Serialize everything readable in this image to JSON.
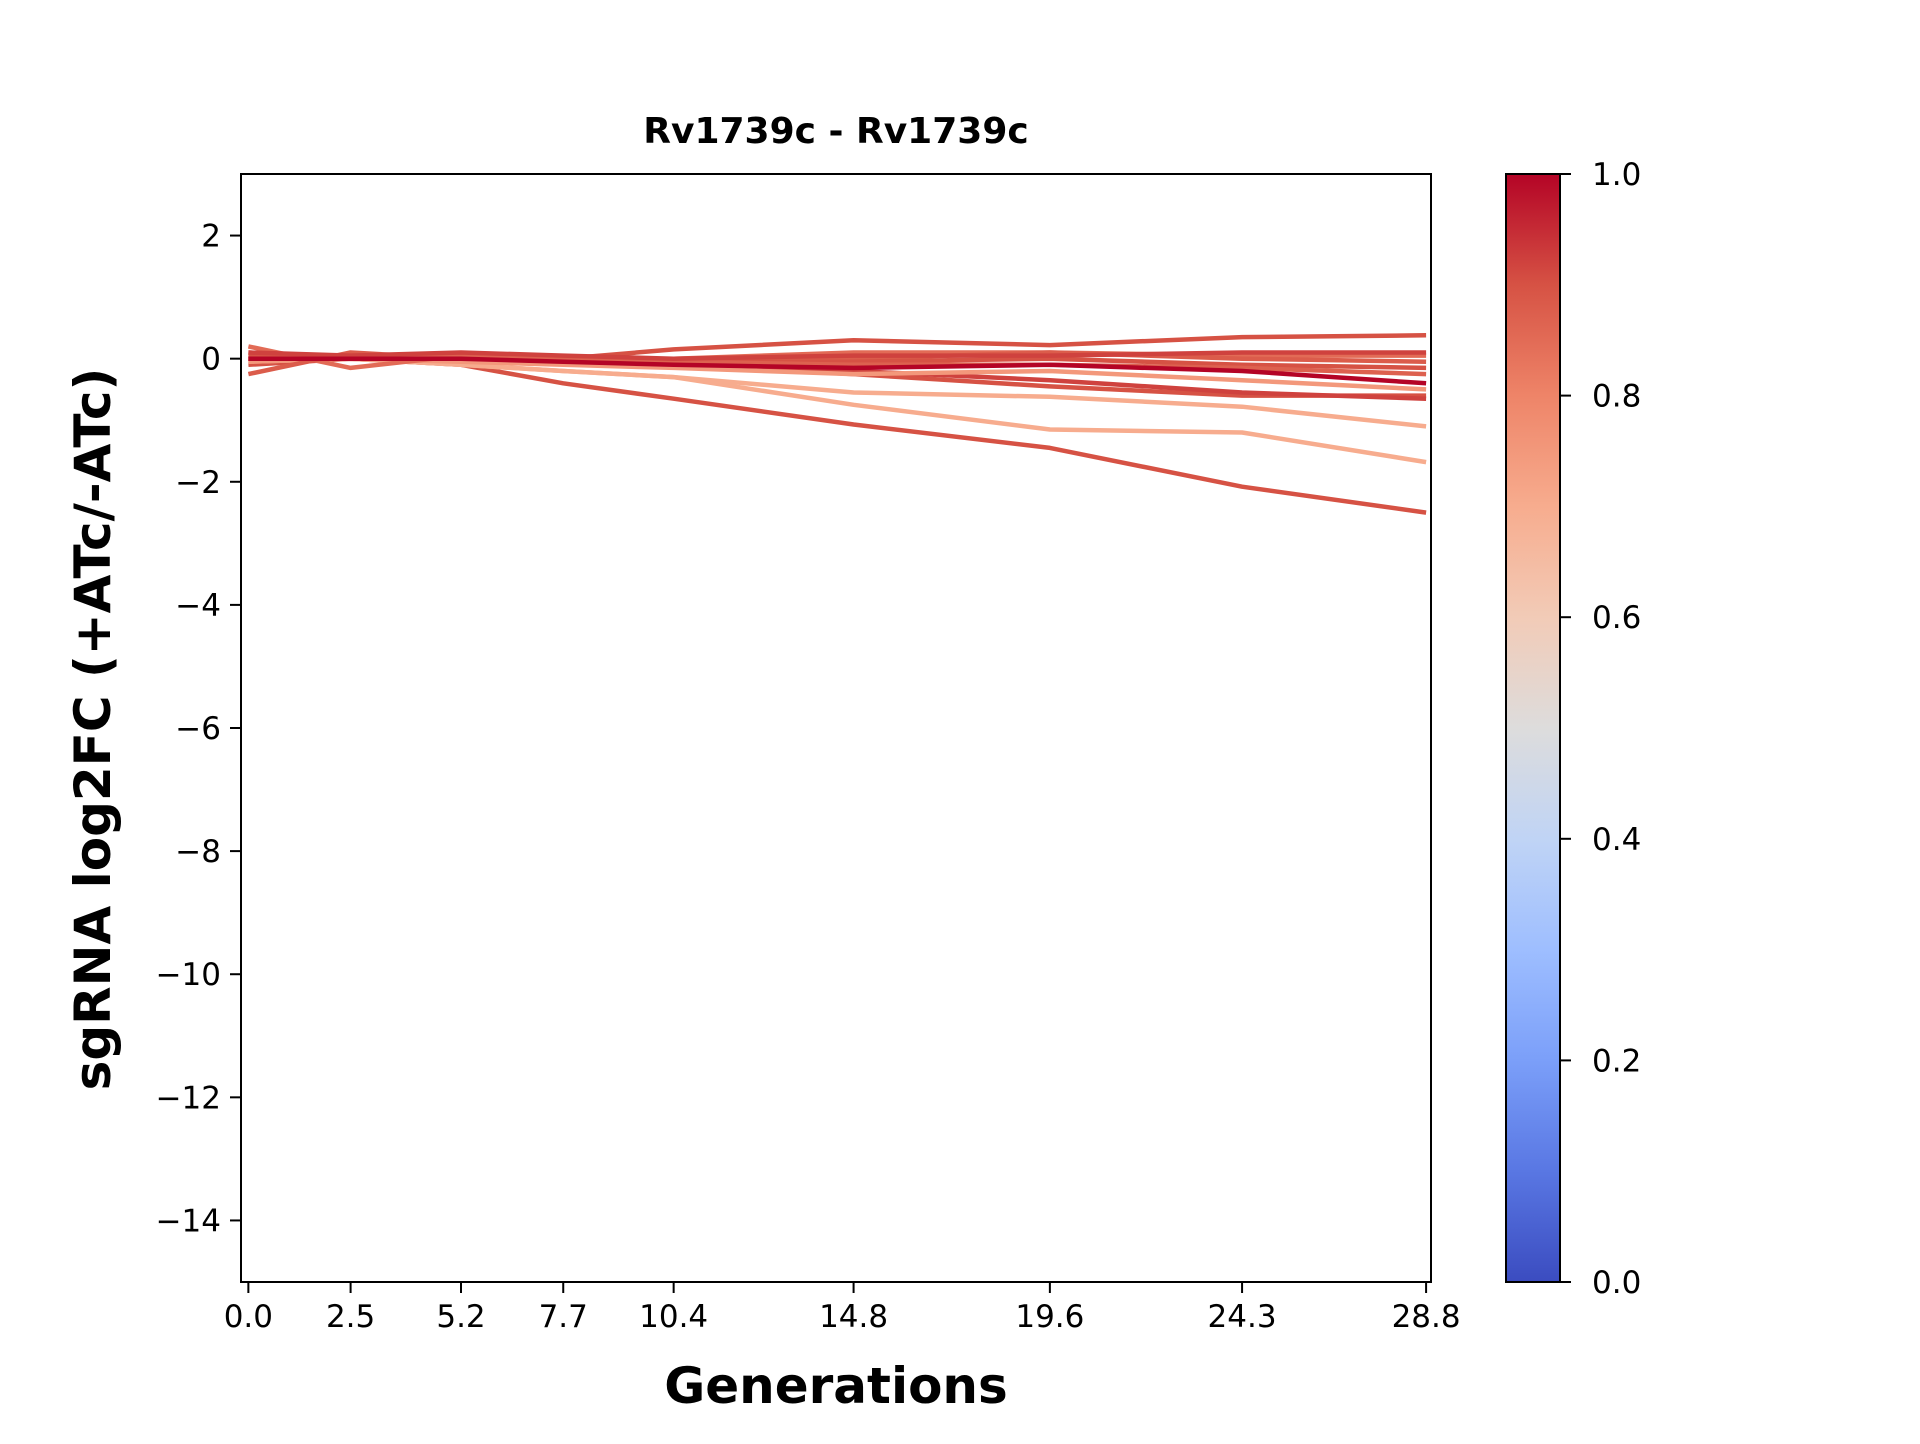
{
  "chart_data": {
    "type": "line",
    "title": "Rv1739c - Rv1739c",
    "xlabel": "Generations",
    "ylabel": "sgRNA log2FC (+ATc/-ATc)",
    "xlim": [
      -0.18,
      28.92
    ],
    "ylim": [
      -15,
      3
    ],
    "x": [
      0.0,
      2.5,
      5.2,
      7.7,
      10.4,
      14.8,
      19.6,
      24.3,
      28.8
    ],
    "x_tick_labels": [
      "0.0",
      "2.5",
      "5.2",
      "7.7",
      "10.4",
      "14.8",
      "19.6",
      "24.3",
      "28.8"
    ],
    "y_ticks": [
      2,
      0,
      -2,
      -4,
      -6,
      -8,
      -10,
      -12,
      -14
    ],
    "y_tick_labels": [
      "2",
      "0",
      "−2",
      "−4",
      "−6",
      "−8",
      "−10",
      "−12",
      "−14"
    ],
    "grid": false,
    "colormap": "coolwarm",
    "colorbar": {
      "range": [
        0.0,
        1.0
      ],
      "ticks": [
        0.0,
        0.2,
        0.4,
        0.6,
        0.8,
        1.0
      ],
      "tick_labels": [
        "0.0",
        "0.2",
        "0.4",
        "0.6",
        "0.8",
        "1.0"
      ],
      "stops": [
        "#3b4cc0",
        "#5977e3",
        "#7b9ff9",
        "#9ebeff",
        "#c0d4f5",
        "#dddcdc",
        "#f2cbb7",
        "#f7ac8e",
        "#ee8468",
        "#d65244",
        "#b40426"
      ]
    },
    "series": [
      {
        "color_value": 0.9,
        "values": [
          -0.1,
          0.0,
          -0.1,
          -0.4,
          -0.65,
          -1.07,
          -1.45,
          -2.08,
          -2.5
        ]
      },
      {
        "color_value": 0.7,
        "values": [
          0.0,
          0.0,
          -0.1,
          -0.2,
          -0.3,
          -0.75,
          -1.15,
          -1.2,
          -1.68
        ]
      },
      {
        "color_value": 0.7,
        "values": [
          -0.05,
          0.0,
          -0.1,
          -0.2,
          -0.3,
          -0.55,
          -0.62,
          -0.78,
          -1.1
        ]
      },
      {
        "color_value": 0.9,
        "values": [
          0.1,
          0.0,
          0.0,
          0.0,
          0.15,
          0.3,
          0.22,
          0.35,
          0.38
        ]
      },
      {
        "color_value": 0.9,
        "values": [
          0.0,
          0.0,
          0.0,
          -0.05,
          -0.1,
          -0.25,
          -0.45,
          -0.6,
          -0.6
        ]
      },
      {
        "color_value": 0.92,
        "values": [
          0.0,
          0.0,
          0.0,
          -0.05,
          -0.1,
          -0.2,
          -0.35,
          -0.55,
          -0.65
        ]
      },
      {
        "color_value": 0.75,
        "values": [
          -0.05,
          0.0,
          -0.05,
          -0.1,
          -0.15,
          -0.25,
          -0.2,
          -0.35,
          -0.5
        ]
      },
      {
        "color_value": 0.85,
        "values": [
          0.2,
          -0.15,
          0.05,
          0.0,
          0.0,
          0.1,
          0.1,
          0.05,
          0.05
        ]
      },
      {
        "color_value": 0.88,
        "values": [
          -0.25,
          0.1,
          0.0,
          0.0,
          0.0,
          0.0,
          0.1,
          0.0,
          -0.05
        ]
      },
      {
        "color_value": 0.9,
        "values": [
          0.05,
          0.05,
          0.05,
          0.0,
          -0.05,
          -0.05,
          0.0,
          -0.1,
          -0.15
        ]
      },
      {
        "color_value": 0.87,
        "values": [
          0.0,
          0.0,
          0.05,
          0.0,
          -0.05,
          -0.1,
          -0.1,
          -0.15,
          -0.25
        ]
      },
      {
        "color_value": 0.92,
        "values": [
          0.1,
          0.05,
          0.1,
          0.05,
          0.0,
          0.05,
          0.05,
          0.1,
          0.1
        ]
      },
      {
        "color_value": 1.0,
        "values": [
          0.0,
          0.0,
          0.0,
          -0.05,
          -0.1,
          -0.15,
          -0.1,
          -0.2,
          -0.4
        ]
      }
    ]
  }
}
